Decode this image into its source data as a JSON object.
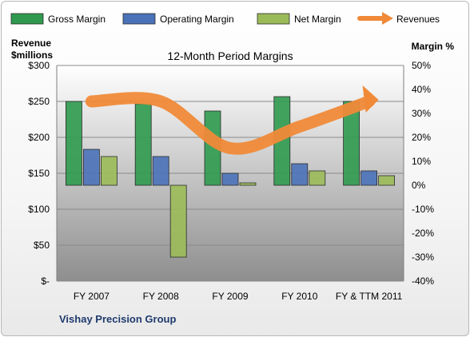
{
  "chart_data": {
    "type": "bar",
    "title": "12-Month Period Margins",
    "company": "Vishay Precision Group",
    "categories": [
      "FY 2007",
      "FY 2008",
      "FY 2009",
      "FY 2010",
      "FY & TTM 2011"
    ],
    "left_axis": {
      "label_line1": "Revenue",
      "label_line2": "$millions",
      "ylim": [
        0,
        300
      ],
      "ticks": [
        0,
        50,
        100,
        150,
        200,
        250,
        300
      ],
      "tick_labels": [
        "$-",
        "$50",
        "$100",
        "$150",
        "$200",
        "$250",
        "$300"
      ]
    },
    "right_axis": {
      "label": "Margin %",
      "ylim": [
        -40,
        50
      ],
      "ticks": [
        -40,
        -30,
        -20,
        -10,
        0,
        10,
        20,
        30,
        40,
        50
      ],
      "tick_labels": [
        "-40%",
        "-30%",
        "-20%",
        "-10%",
        "0%",
        "10%",
        "20%",
        "30%",
        "40%",
        "50%"
      ]
    },
    "series": [
      {
        "name": "Gross Margin",
        "kind": "bar",
        "axis": "right",
        "color": "#2f9a4f",
        "values": [
          35,
          34,
          31,
          37,
          35
        ]
      },
      {
        "name": "Operating Margin",
        "kind": "bar",
        "axis": "right",
        "color": "#4a72b8",
        "values": [
          15,
          12,
          5,
          9,
          6
        ]
      },
      {
        "name": "Net Margin",
        "kind": "bar",
        "axis": "right",
        "color": "#9bbb59",
        "values": [
          12,
          -30,
          1,
          6,
          4
        ]
      },
      {
        "name": "Revenues",
        "kind": "line",
        "axis": "left",
        "color": "#f08a38",
        "values": [
          250,
          250,
          185,
          215,
          250
        ]
      }
    ],
    "legend_position": "top",
    "grid": true
  }
}
